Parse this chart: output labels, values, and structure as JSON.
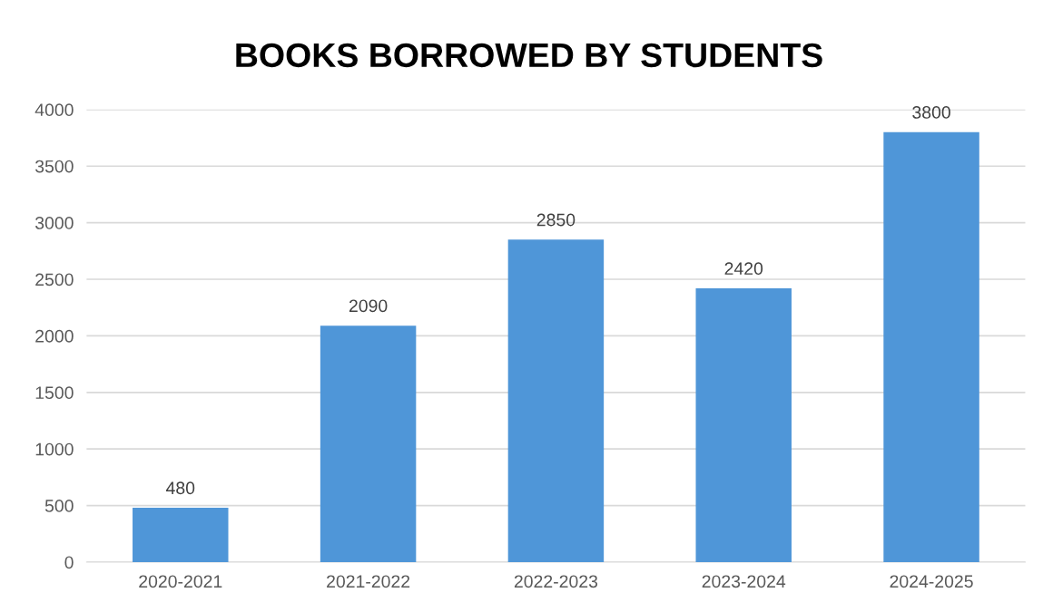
{
  "chart_data": {
    "type": "bar",
    "title": "BOOKS BORROWED BY STUDENTS",
    "categories": [
      "2020-2021",
      "2021-2022",
      "2022-2023",
      "2023-2024",
      "2024-2025"
    ],
    "values": [
      480,
      2090,
      2850,
      2420,
      3800
    ],
    "color": "#4f96d8",
    "ylim": [
      0,
      4000
    ],
    "yticks": [
      0,
      500,
      1000,
      1500,
      2000,
      2500,
      3000,
      3500,
      4000
    ],
    "grid": "y",
    "data_labels": true
  }
}
